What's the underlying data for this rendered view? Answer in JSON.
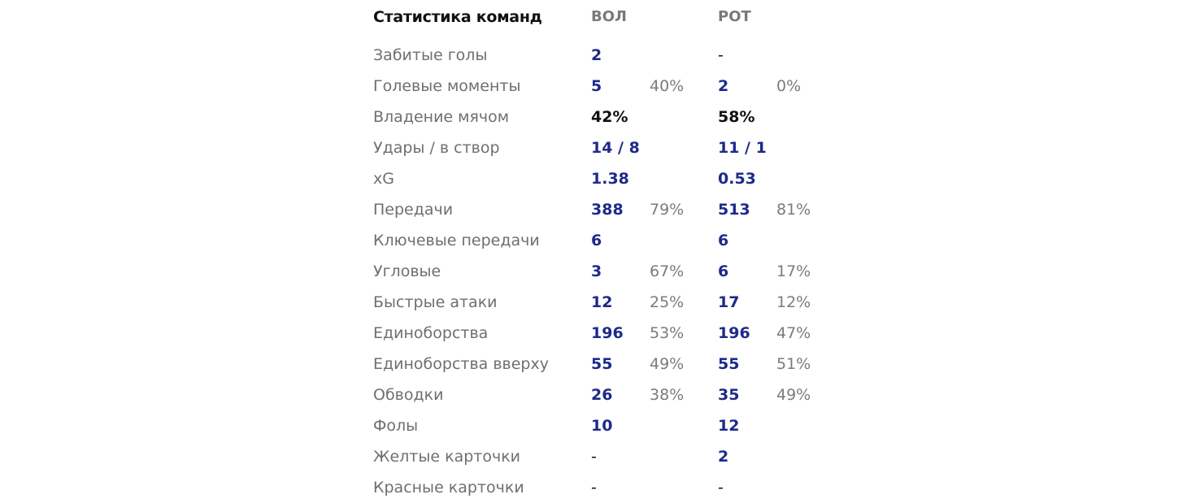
{
  "header": {
    "title": "Статистика команд",
    "team1": "ВОЛ",
    "team2": "РОТ"
  },
  "rows": [
    {
      "label": "Забитые голы",
      "v1": "2",
      "p1": "",
      "v2": "-",
      "p2": ""
    },
    {
      "label": "Голевые моменты",
      "v1": "5",
      "p1": "40%",
      "v2": "2",
      "p2": "0%"
    },
    {
      "label": "Владение мячом",
      "v1": "42%",
      "p1": "",
      "v2": "58%",
      "p2": ""
    },
    {
      "label": "Удары / в створ",
      "v1": "14 / 8",
      "p1": "",
      "v2": "11 / 1",
      "p2": ""
    },
    {
      "label": "xG",
      "v1": "1.38",
      "p1": "",
      "v2": "0.53",
      "p2": ""
    },
    {
      "label": "Передачи",
      "v1": "388",
      "p1": "79%",
      "v2": "513",
      "p2": "81%"
    },
    {
      "label": "Ключевые передачи",
      "v1": "6",
      "p1": "",
      "v2": "6",
      "p2": ""
    },
    {
      "label": "Угловые",
      "v1": "3",
      "p1": "67%",
      "v2": "6",
      "p2": "17%"
    },
    {
      "label": "Быстрые атаки",
      "v1": "12",
      "p1": "25%",
      "v2": "17",
      "p2": "12%"
    },
    {
      "label": "Единоборства",
      "v1": "196",
      "p1": "53%",
      "v2": "196",
      "p2": "47%"
    },
    {
      "label": "Единоборства вверху",
      "v1": "55",
      "p1": "49%",
      "v2": "55",
      "p2": "51%"
    },
    {
      "label": "Обводки",
      "v1": "26",
      "p1": "38%",
      "v2": "35",
      "p2": "49%"
    },
    {
      "label": "Фолы",
      "v1": "10",
      "p1": "",
      "v2": "12",
      "p2": ""
    },
    {
      "label": "Желтые карточки",
      "v1": "-",
      "p1": "",
      "v2": "2",
      "p2": ""
    },
    {
      "label": "Красные карточки",
      "v1": "-",
      "p1": "",
      "v2": "-",
      "p2": ""
    }
  ]
}
